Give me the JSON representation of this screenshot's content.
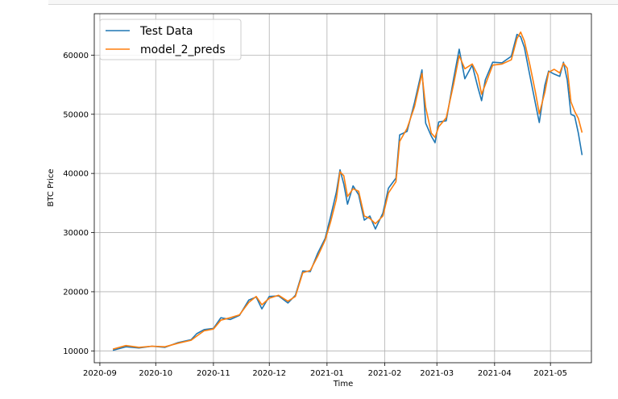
{
  "chart_data": {
    "type": "line",
    "xlabel": "Time",
    "ylabel": "BTC Price",
    "xlim": [
      "2020-08-29",
      "2021-05-23"
    ],
    "ylim": [
      8000,
      67000
    ],
    "x_ticks": [
      "2020-09-01",
      "2020-10-01",
      "2020-11-01",
      "2020-12-01",
      "2021-01-01",
      "2021-02-01",
      "2021-03-01",
      "2021-04-01",
      "2021-05-01"
    ],
    "x_tick_labels": [
      "2020-09",
      "2020-10",
      "2020-11",
      "2020-12",
      "2021-01",
      "2021-02",
      "2021-03",
      "2021-04",
      "2021-05"
    ],
    "y_ticks": [
      10000,
      20000,
      30000,
      40000,
      50000,
      60000
    ],
    "y_tick_labels": [
      "10000",
      "20000",
      "30000",
      "40000",
      "50000",
      "60000"
    ],
    "grid": true,
    "legend_position": "top-left",
    "series": [
      {
        "name": "Test Data",
        "color": "#1f77b4",
        "points": [
          [
            "2020-09-08",
            10100
          ],
          [
            "2020-09-15",
            10700
          ],
          [
            "2020-09-22",
            10500
          ],
          [
            "2020-09-29",
            10800
          ],
          [
            "2020-10-06",
            10600
          ],
          [
            "2020-10-13",
            11400
          ],
          [
            "2020-10-20",
            11900
          ],
          [
            "2020-10-23",
            12900
          ],
          [
            "2020-10-27",
            13600
          ],
          [
            "2020-11-01",
            13800
          ],
          [
            "2020-11-05",
            15600
          ],
          [
            "2020-11-10",
            15300
          ],
          [
            "2020-11-15",
            16000
          ],
          [
            "2020-11-20",
            18600
          ],
          [
            "2020-11-24",
            19100
          ],
          [
            "2020-11-27",
            17100
          ],
          [
            "2020-12-01",
            19200
          ],
          [
            "2020-12-06",
            19300
          ],
          [
            "2020-12-11",
            18100
          ],
          [
            "2020-12-15",
            19400
          ],
          [
            "2020-12-19",
            23500
          ],
          [
            "2020-12-23",
            23400
          ],
          [
            "2020-12-27",
            26500
          ],
          [
            "2020-12-31",
            29000
          ],
          [
            "2021-01-03",
            32800
          ],
          [
            "2021-01-06",
            36800
          ],
          [
            "2021-01-08",
            40600
          ],
          [
            "2021-01-10",
            38200
          ],
          [
            "2021-01-12",
            34800
          ],
          [
            "2021-01-15",
            37900
          ],
          [
            "2021-01-18",
            36400
          ],
          [
            "2021-01-21",
            32100
          ],
          [
            "2021-01-24",
            32800
          ],
          [
            "2021-01-27",
            30600
          ],
          [
            "2021-01-31",
            33300
          ],
          [
            "2021-02-03",
            37500
          ],
          [
            "2021-02-07",
            39200
          ],
          [
            "2021-02-09",
            46500
          ],
          [
            "2021-02-13",
            47100
          ],
          [
            "2021-02-17",
            52000
          ],
          [
            "2021-02-21",
            57500
          ],
          [
            "2021-02-23",
            48500
          ],
          [
            "2021-02-26",
            46300
          ],
          [
            "2021-02-28",
            45200
          ],
          [
            "2021-03-02",
            48700
          ],
          [
            "2021-03-06",
            48900
          ],
          [
            "2021-03-10",
            56000
          ],
          [
            "2021-03-13",
            61000
          ],
          [
            "2021-03-16",
            56000
          ],
          [
            "2021-03-20",
            58300
          ],
          [
            "2021-03-23",
            54600
          ],
          [
            "2021-03-25",
            52300
          ],
          [
            "2021-03-27",
            55800
          ],
          [
            "2021-03-31",
            58800
          ],
          [
            "2021-04-05",
            58700
          ],
          [
            "2021-04-10",
            59800
          ],
          [
            "2021-04-13",
            63500
          ],
          [
            "2021-04-15",
            63100
          ],
          [
            "2021-04-17",
            61300
          ],
          [
            "2021-04-20",
            56500
          ],
          [
            "2021-04-23",
            51700
          ],
          [
            "2021-04-25",
            48600
          ],
          [
            "2021-04-28",
            54900
          ],
          [
            "2021-04-30",
            57300
          ],
          [
            "2021-05-03",
            56800
          ],
          [
            "2021-05-06",
            56400
          ],
          [
            "2021-05-08",
            58800
          ],
          [
            "2021-05-10",
            55800
          ],
          [
            "2021-05-12",
            50000
          ],
          [
            "2021-05-14",
            49700
          ],
          [
            "2021-05-16",
            46800
          ],
          [
            "2021-05-18",
            43100
          ]
        ]
      },
      {
        "name": "model_2_preds",
        "color": "#ff7f0e",
        "points": [
          [
            "2020-09-08",
            10300
          ],
          [
            "2020-09-15",
            10900
          ],
          [
            "2020-09-22",
            10600
          ],
          [
            "2020-09-29",
            10800
          ],
          [
            "2020-10-06",
            10700
          ],
          [
            "2020-10-13",
            11300
          ],
          [
            "2020-10-20",
            11800
          ],
          [
            "2020-10-23",
            12500
          ],
          [
            "2020-10-27",
            13400
          ],
          [
            "2020-11-01",
            13700
          ],
          [
            "2020-11-05",
            15200
          ],
          [
            "2020-11-10",
            15600
          ],
          [
            "2020-11-15",
            16100
          ],
          [
            "2020-11-20",
            18200
          ],
          [
            "2020-11-24",
            19200
          ],
          [
            "2020-11-27",
            17800
          ],
          [
            "2020-12-01",
            18900
          ],
          [
            "2020-12-06",
            19400
          ],
          [
            "2020-12-11",
            18400
          ],
          [
            "2020-12-15",
            19200
          ],
          [
            "2020-12-19",
            23200
          ],
          [
            "2020-12-23",
            23600
          ],
          [
            "2020-12-27",
            26000
          ],
          [
            "2020-12-31",
            28700
          ],
          [
            "2021-01-03",
            31900
          ],
          [
            "2021-01-06",
            35600
          ],
          [
            "2021-01-08",
            40300
          ],
          [
            "2021-01-10",
            39600
          ],
          [
            "2021-01-12",
            36100
          ],
          [
            "2021-01-15",
            37400
          ],
          [
            "2021-01-18",
            37000
          ],
          [
            "2021-01-21",
            32800
          ],
          [
            "2021-01-24",
            32400
          ],
          [
            "2021-01-27",
            31500
          ],
          [
            "2021-01-31",
            32800
          ],
          [
            "2021-02-03",
            36700
          ],
          [
            "2021-02-07",
            38600
          ],
          [
            "2021-02-09",
            45400
          ],
          [
            "2021-02-13",
            47600
          ],
          [
            "2021-02-17",
            51300
          ],
          [
            "2021-02-21",
            56900
          ],
          [
            "2021-02-23",
            51200
          ],
          [
            "2021-02-26",
            46800
          ],
          [
            "2021-02-28",
            46100
          ],
          [
            "2021-03-02",
            47900
          ],
          [
            "2021-03-06",
            49400
          ],
          [
            "2021-03-10",
            55100
          ],
          [
            "2021-03-13",
            59900
          ],
          [
            "2021-03-16",
            57700
          ],
          [
            "2021-03-20",
            58500
          ],
          [
            "2021-03-23",
            56600
          ],
          [
            "2021-03-25",
            53400
          ],
          [
            "2021-03-27",
            55000
          ],
          [
            "2021-03-31",
            58300
          ],
          [
            "2021-04-05",
            58500
          ],
          [
            "2021-04-10",
            59200
          ],
          [
            "2021-04-13",
            62800
          ],
          [
            "2021-04-15",
            63900
          ],
          [
            "2021-04-17",
            62400
          ],
          [
            "2021-04-20",
            58300
          ],
          [
            "2021-04-23",
            53600
          ],
          [
            "2021-04-25",
            50100
          ],
          [
            "2021-04-28",
            53700
          ],
          [
            "2021-04-30",
            57100
          ],
          [
            "2021-05-03",
            57600
          ],
          [
            "2021-05-06",
            57000
          ],
          [
            "2021-05-08",
            58600
          ],
          [
            "2021-05-10",
            57800
          ],
          [
            "2021-05-12",
            52100
          ],
          [
            "2021-05-14",
            50500
          ],
          [
            "2021-05-16",
            49300
          ],
          [
            "2021-05-18",
            46900
          ]
        ]
      }
    ]
  }
}
